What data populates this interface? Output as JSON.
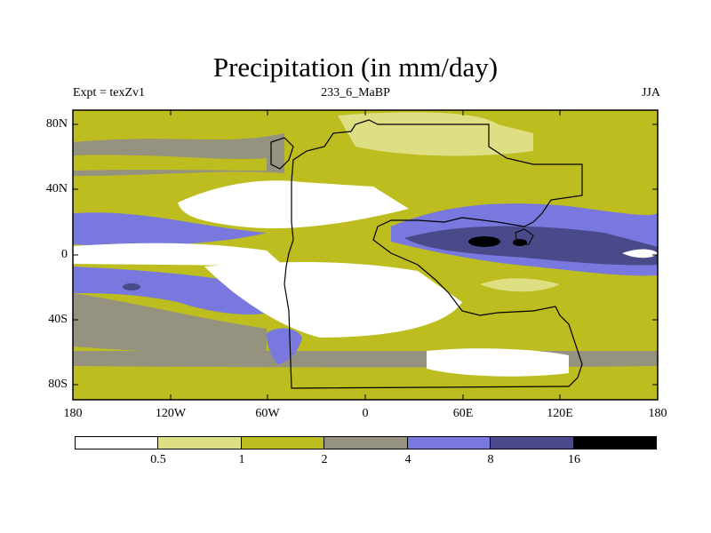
{
  "title": "Precipitation (in mm/day)",
  "left_label": "Expt = texZv1",
  "center_label": "233_6_MaBP",
  "right_label": "JJA",
  "y_ticks": [
    "80N",
    "40N",
    "0",
    "40S",
    "80S"
  ],
  "x_ticks": [
    "180",
    "120W",
    "60W",
    "0",
    "60E",
    "120E",
    "180"
  ],
  "colorbar": {
    "colors": [
      "#ffffff",
      "#dede82",
      "#bdbd20",
      "#959280",
      "#7878df",
      "#4a4a8a",
      "#000000"
    ],
    "labels": [
      "0.5",
      "1",
      "2",
      "4",
      "8",
      "16"
    ]
  },
  "chart_data": {
    "type": "heatmap",
    "title": "Precipitation (in mm/day)",
    "variable": "Precipitation",
    "units": "mm/day",
    "season": "JJA",
    "experiment": "texZv1",
    "run": "233_6_MaBP",
    "xlim": [
      -180,
      180
    ],
    "ylim": [
      -90,
      90
    ],
    "levels": [
      0.5,
      1,
      2,
      4,
      8,
      16
    ]
  }
}
